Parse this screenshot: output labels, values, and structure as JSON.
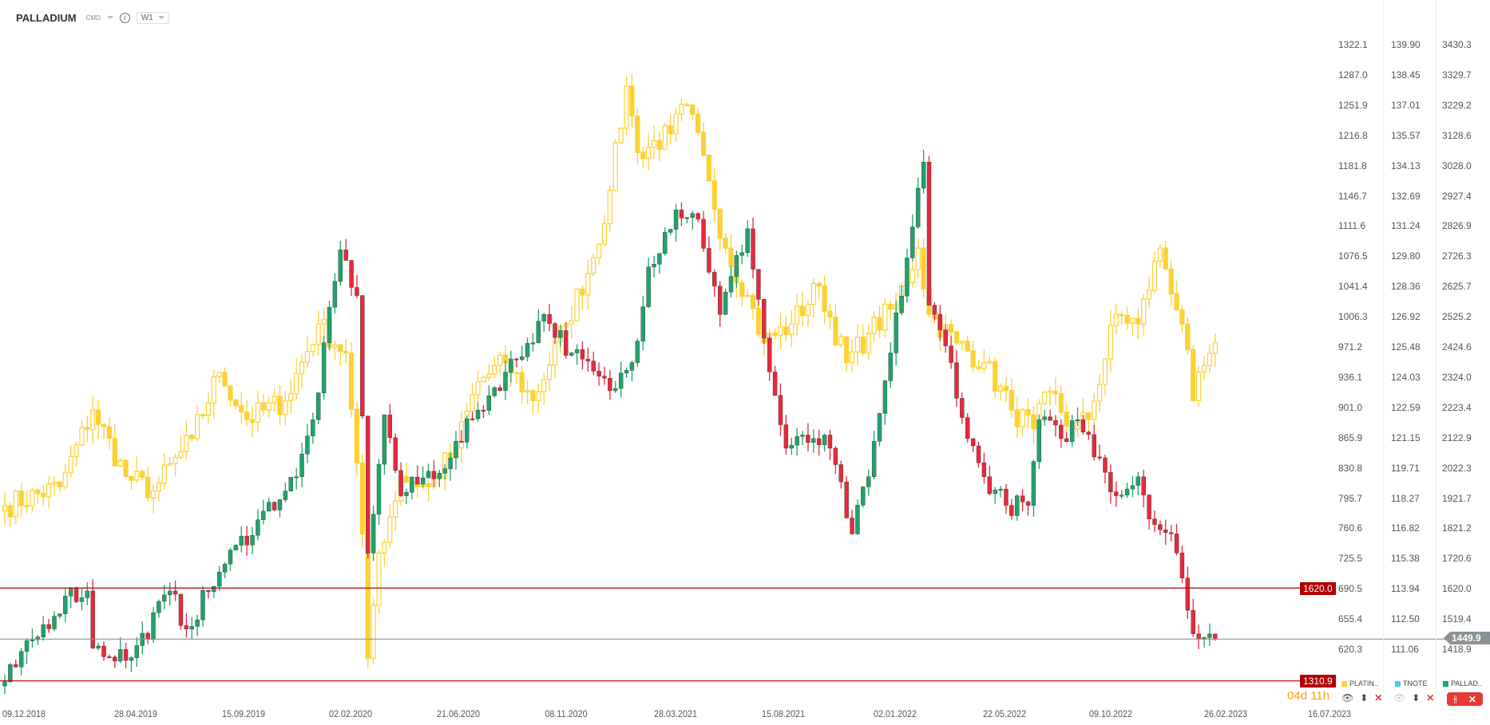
{
  "header": {
    "symbol": "PALLADIUM",
    "type": "CMD",
    "timeframe": "W1"
  },
  "colors": {
    "up": "#1fa36a",
    "down": "#e8283c",
    "platinum": "#fbd135",
    "level": "#b00000",
    "price": "#8a9296"
  },
  "axes": {
    "platinum": [
      "1322.1",
      "1287.0",
      "1251.9",
      "1216.8",
      "1181.8",
      "1146.7",
      "1111.6",
      "1076.5",
      "1041.4",
      "1006.3",
      "971.2",
      "936.1",
      "901.0",
      "865.9",
      "830.8",
      "795.7",
      "760.6",
      "725.5",
      "690.5",
      "655.4",
      "620.3"
    ],
    "tnote": [
      "139.90",
      "138.45",
      "137.01",
      "135.57",
      "134.13",
      "132.69",
      "131.24",
      "129.80",
      "128.36",
      "126.92",
      "125.48",
      "124.03",
      "122.59",
      "121.15",
      "119.71",
      "118.27",
      "116.82",
      "115.38",
      "113.94",
      "112.50",
      "111.06"
    ],
    "palladium": [
      "3430.3",
      "3329.7",
      "3229.2",
      "3128.6",
      "3028.0",
      "2927.4",
      "2826.9",
      "2726.3",
      "2625.7",
      "2525.2",
      "2424.6",
      "2324.0",
      "2223.4",
      "2122.9",
      "2022.3",
      "1921.7",
      "1821.2",
      "1720.6",
      "1620.0",
      "1519.4",
      "1418.9"
    ]
  },
  "x_labels": [
    "09.12.2018",
    "28.04.2019",
    "15.09.2019",
    "02.02.2020",
    "21.06.2020",
    "08.11.2020",
    "28.03.2021",
    "15.08.2021",
    "02.01.2022",
    "22.05.2022",
    "09.10.2022",
    "26.02.2023",
    "16.07.2023"
  ],
  "levels": {
    "upper": "1620.0",
    "lower": "1310.9",
    "current": "1449.9"
  },
  "countdown": {
    "days": "04d",
    "hours": "11h"
  },
  "legend": [
    {
      "name": "PLATIN..",
      "color": "#fbd135"
    },
    {
      "name": "TNOTE",
      "color": "#4fc3f7"
    },
    {
      "name": "PALLAD..",
      "color": "#1fa36a"
    }
  ],
  "chart_data": {
    "type": "candlestick",
    "x_unit": "weeks since 09.12.2018",
    "palladium_close_keypoints": [
      [
        0,
        1308
      ],
      [
        11,
        1593
      ],
      [
        15,
        1610
      ],
      [
        16,
        1420
      ],
      [
        23,
        1388
      ],
      [
        30,
        1610
      ],
      [
        33,
        1483
      ],
      [
        39,
        1673
      ],
      [
        46,
        1847
      ],
      [
        53,
        1990
      ],
      [
        56,
        2180
      ],
      [
        61,
        2745
      ],
      [
        64,
        2593
      ],
      [
        66,
        1736
      ],
      [
        69,
        2196
      ],
      [
        72,
        1927
      ],
      [
        81,
        2053
      ],
      [
        86,
        2212
      ],
      [
        95,
        2434
      ],
      [
        98,
        2530
      ],
      [
        103,
        2402
      ],
      [
        110,
        2276
      ],
      [
        114,
        2370
      ],
      [
        117,
        2688
      ],
      [
        122,
        2878
      ],
      [
        126,
        2847
      ],
      [
        130,
        2530
      ],
      [
        135,
        2815
      ],
      [
        139,
        2339
      ],
      [
        142,
        2085
      ],
      [
        147,
        2117
      ],
      [
        150,
        2085
      ],
      [
        154,
        1800
      ],
      [
        157,
        1990
      ],
      [
        161,
        2402
      ],
      [
        167,
        3037
      ],
      [
        168,
        2561
      ],
      [
        172,
        2370
      ],
      [
        175,
        2117
      ],
      [
        178,
        1990
      ],
      [
        182,
        1895
      ],
      [
        186,
        1895
      ],
      [
        188,
        2180
      ],
      [
        192,
        2117
      ],
      [
        195,
        2180
      ],
      [
        199,
        2053
      ],
      [
        202,
        1927
      ],
      [
        206,
        1990
      ],
      [
        209,
        1831
      ],
      [
        212,
        1800
      ],
      [
        215,
        1546
      ],
      [
        217,
        1451
      ],
      [
        219,
        1467
      ],
      [
        220,
        1450
      ]
    ],
    "platinum_close_keypoints": [
      [
        0,
        786
      ],
      [
        10,
        808
      ],
      [
        16,
        897
      ],
      [
        22,
        820
      ],
      [
        27,
        803
      ],
      [
        34,
        864
      ],
      [
        39,
        941
      ],
      [
        44,
        886
      ],
      [
        51,
        908
      ],
      [
        57,
        997
      ],
      [
        62,
        963
      ],
      [
        65,
        753
      ],
      [
        66,
        609
      ],
      [
        68,
        731
      ],
      [
        72,
        820
      ],
      [
        77,
        808
      ],
      [
        82,
        853
      ],
      [
        86,
        930
      ],
      [
        91,
        952
      ],
      [
        96,
        908
      ],
      [
        102,
        997
      ],
      [
        107,
        1074
      ],
      [
        110,
        1152
      ],
      [
        113,
        1273
      ],
      [
        115,
        1196
      ],
      [
        121,
        1218
      ],
      [
        124,
        1251
      ],
      [
        128,
        1163
      ],
      [
        131,
        1085
      ],
      [
        135,
        1030
      ],
      [
        138,
        975
      ],
      [
        143,
        997
      ],
      [
        148,
        1041
      ],
      [
        153,
        952
      ],
      [
        157,
        986
      ],
      [
        162,
        1019
      ],
      [
        166,
        1085
      ],
      [
        168,
        1008
      ],
      [
        173,
        975
      ],
      [
        178,
        952
      ],
      [
        183,
        897
      ],
      [
        187,
        875
      ],
      [
        190,
        919
      ],
      [
        194,
        875
      ],
      [
        197,
        886
      ],
      [
        202,
        1008
      ],
      [
        206,
        997
      ],
      [
        210,
        1085
      ],
      [
        214,
        997
      ],
      [
        216,
        908
      ],
      [
        219,
        963
      ],
      [
        220,
        975
      ]
    ]
  }
}
